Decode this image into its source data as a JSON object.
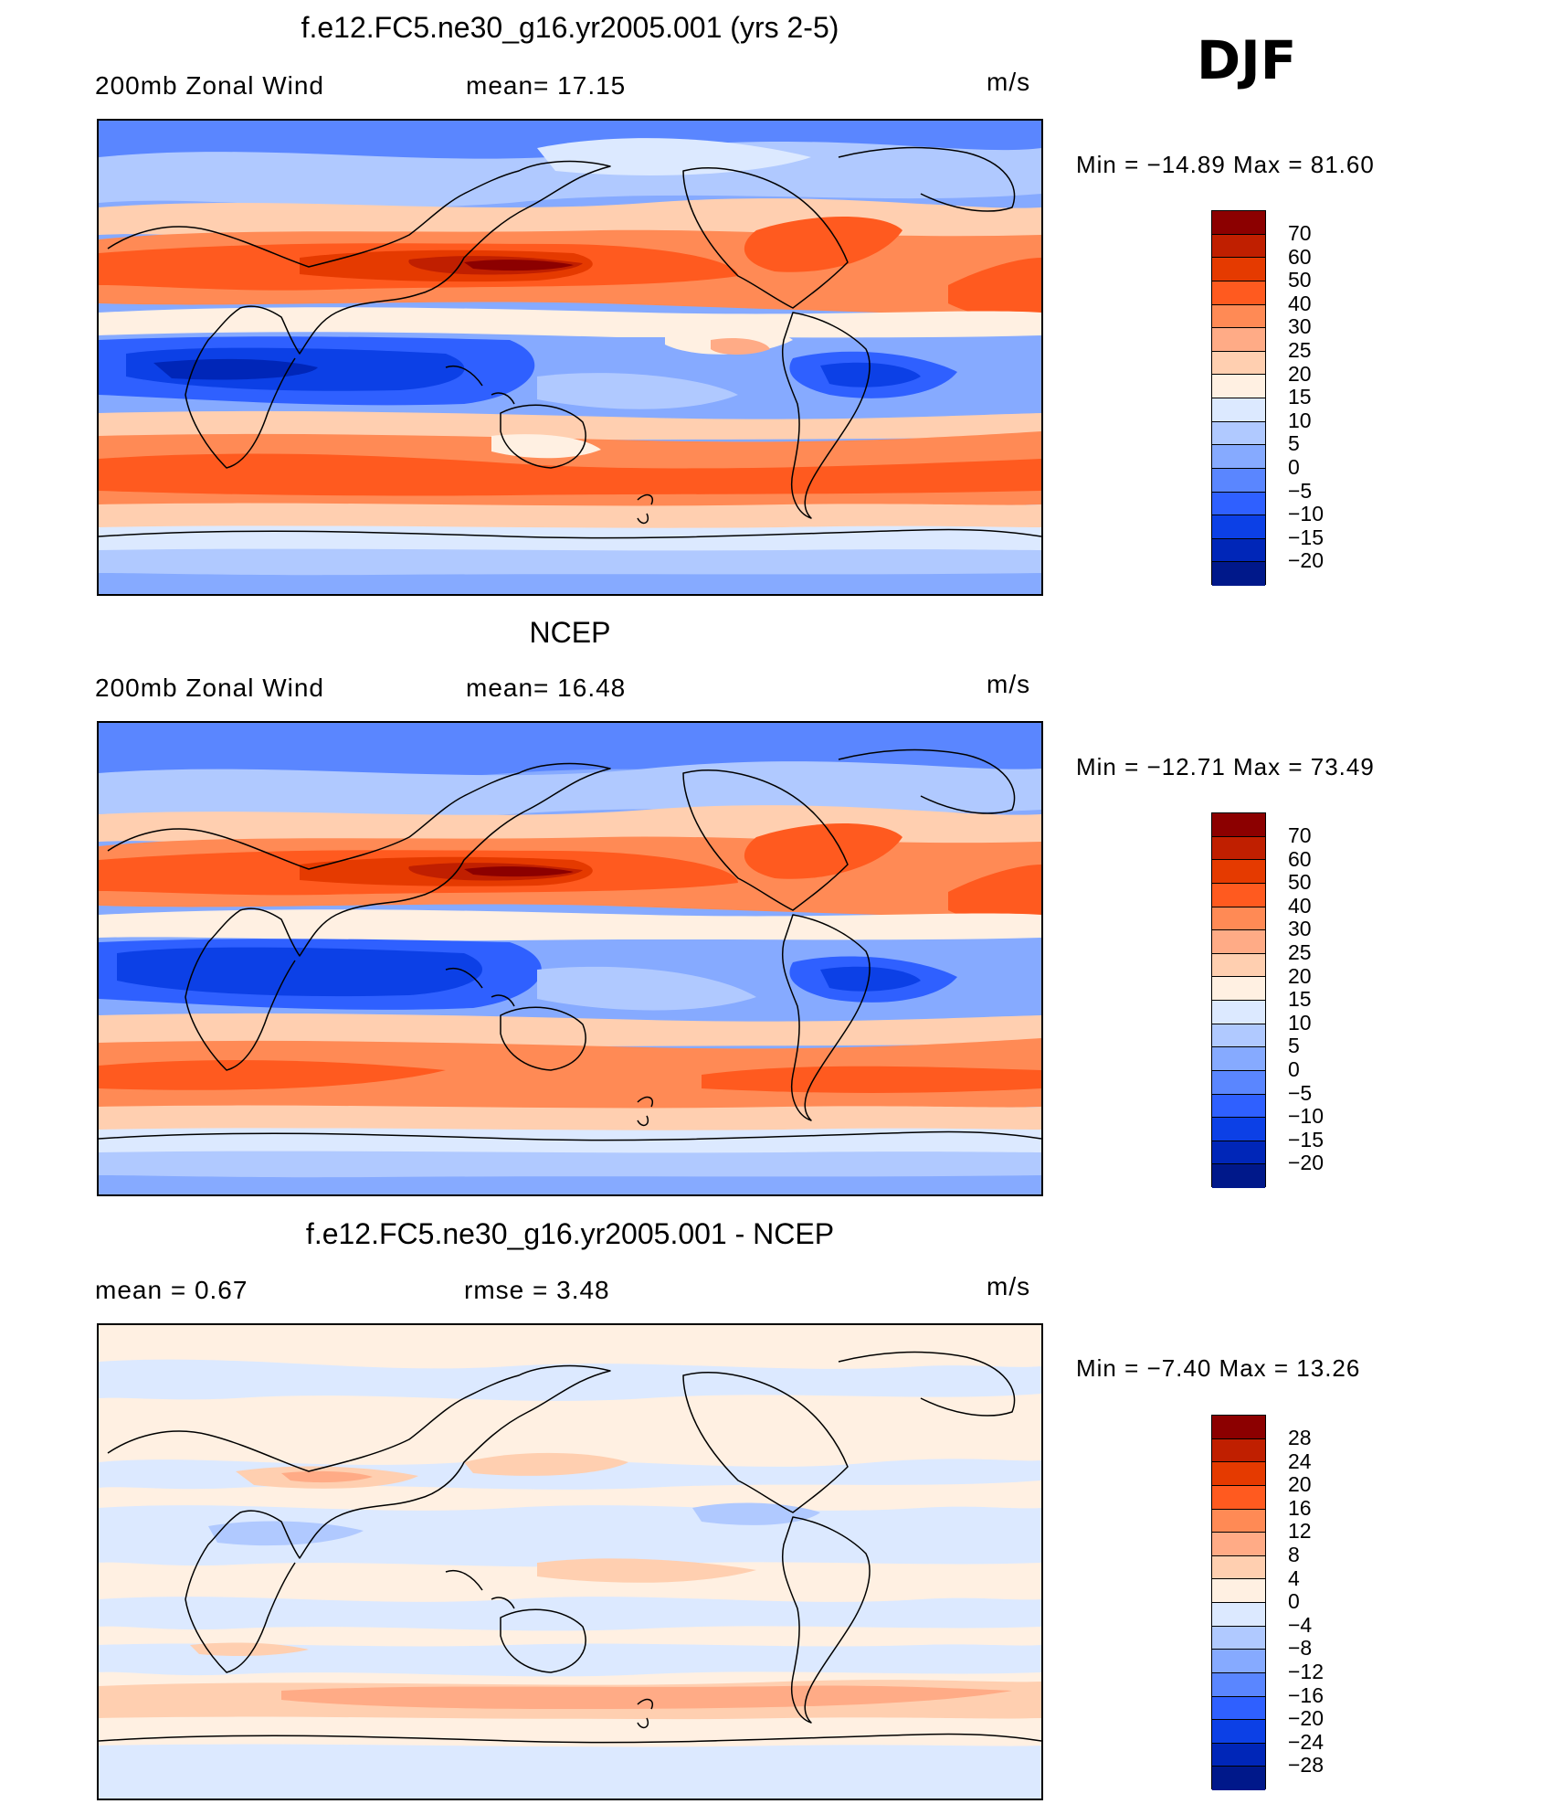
{
  "season_label": "DJF",
  "panels": [
    {
      "title": "f.e12.FC5.ne30_g16.yr2005.001 (yrs 2-5)",
      "left_text": "200mb  Zonal  Wind",
      "stat_text": "mean=   17.15",
      "units": "m/s",
      "minmax": "Min  =  −14.89  Max  =    81.60",
      "colorbar": {
        "levels": [
          "70",
          "60",
          "50",
          "40",
          "30",
          "25",
          "20",
          "15",
          "10",
          "5",
          "0",
          "−5",
          "−10",
          "−15",
          "−20"
        ],
        "colors": [
          "#8c0000",
          "#c01f00",
          "#e53a00",
          "#ff5a1f",
          "#ff8a55",
          "#ffab86",
          "#ffcfb0",
          "#fff0e2",
          "#dce9ff",
          "#b0c9ff",
          "#86aaff",
          "#5a86ff",
          "#2f60ff",
          "#0c40e6",
          "#0026b8",
          "#00188a"
        ]
      }
    },
    {
      "title": "NCEP",
      "left_text": "200mb  Zonal  Wind",
      "stat_text": "mean=   16.48",
      "units": "m/s",
      "minmax": "Min  =  −12.71  Max  =    73.49",
      "colorbar": {
        "levels": [
          "70",
          "60",
          "50",
          "40",
          "30",
          "25",
          "20",
          "15",
          "10",
          "5",
          "0",
          "−5",
          "−10",
          "−15",
          "−20"
        ],
        "colors": [
          "#8c0000",
          "#c01f00",
          "#e53a00",
          "#ff5a1f",
          "#ff8a55",
          "#ffab86",
          "#ffcfb0",
          "#fff0e2",
          "#dce9ff",
          "#b0c9ff",
          "#86aaff",
          "#5a86ff",
          "#2f60ff",
          "#0c40e6",
          "#0026b8",
          "#00188a"
        ]
      }
    },
    {
      "title": "f.e12.FC5.ne30_g16.yr2005.001 - NCEP",
      "left_text": "mean  =     0.67",
      "stat_text": "rmse  =     3.48",
      "units": "m/s",
      "minmax": "Min  =    −7.40  Max  =    13.26",
      "colorbar": {
        "levels": [
          "28",
          "24",
          "20",
          "16",
          "12",
          "8",
          "4",
          "0",
          "−4",
          "−8",
          "−12",
          "−16",
          "−20",
          "−24",
          "−28"
        ],
        "colors": [
          "#8c0000",
          "#c01f00",
          "#e53a00",
          "#ff5a1f",
          "#ff8a55",
          "#ffab86",
          "#ffcfb0",
          "#fff0e2",
          "#dce9ff",
          "#b0c9ff",
          "#86aaff",
          "#5a86ff",
          "#2f60ff",
          "#0c40e6",
          "#0026b8",
          "#00188a"
        ]
      }
    }
  ]
}
